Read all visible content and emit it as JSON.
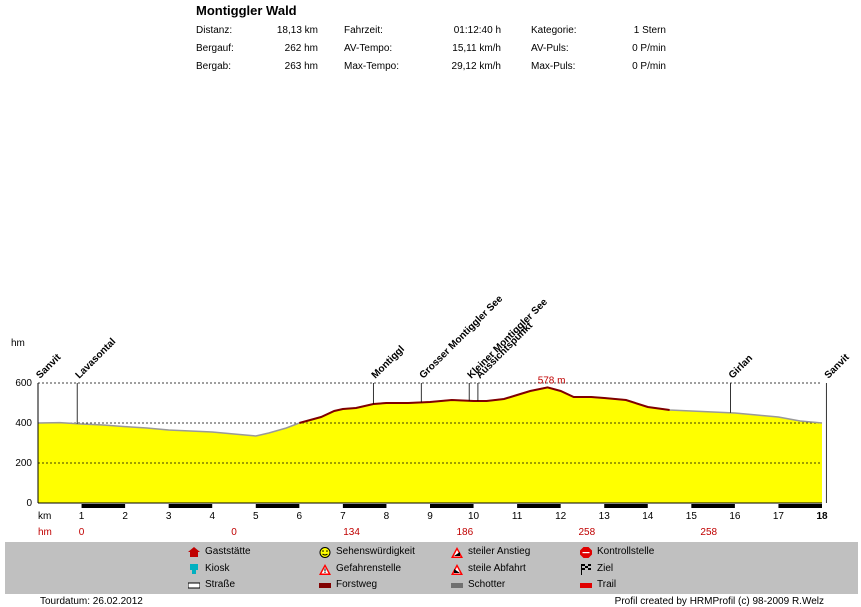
{
  "header": {
    "title": "Montiggler Wald",
    "stats": [
      {
        "label": "Distanz:",
        "value": "18,13 km"
      },
      {
        "label": "Bergauf:",
        "value": "262 hm"
      },
      {
        "label": "Bergab:",
        "value": "263 hm"
      },
      {
        "label": "Fahrzeit:",
        "value": "01:12:40 h"
      },
      {
        "label": "AV-Tempo:",
        "value": "15,11 km/h"
      },
      {
        "label": "Max-Tempo:",
        "value": "29,12 km/h"
      },
      {
        "label": "Kategorie:",
        "value": "1 Stern"
      },
      {
        "label": "AV-Puls:",
        "value": "0 P/min"
      },
      {
        "label": "Max-Puls:",
        "value": "0 P/min"
      }
    ]
  },
  "chart_data": {
    "type": "area",
    "ylabel": "hm",
    "xlabel": "km",
    "ylim": [
      0,
      600
    ],
    "xlim": [
      0,
      18
    ],
    "y_ticks": [
      "0",
      "200",
      "400",
      "600"
    ],
    "x_ticks": [
      "1",
      "2",
      "3",
      "4",
      "5",
      "6",
      "7",
      "8",
      "9",
      "10",
      "11",
      "12",
      "13",
      "14",
      "15",
      "16",
      "17",
      "18"
    ],
    "grid": "dashed-horizontal",
    "fill_color": "#ffff00",
    "line_color": "#800000",
    "x": [
      0,
      0.5,
      1,
      1.5,
      2,
      2.5,
      3,
      3.5,
      4,
      4.5,
      5,
      5.3,
      5.7,
      6,
      6.5,
      6.8,
      7,
      7.3,
      7.7,
      8,
      8.5,
      9,
      9.5,
      10,
      10.3,
      10.7,
      11,
      11.3,
      11.7,
      12,
      12.3,
      12.7,
      13,
      13.5,
      14,
      14.5,
      15,
      15.5,
      16,
      16.5,
      17,
      17.5,
      18
    ],
    "y": [
      400,
      402,
      395,
      390,
      382,
      375,
      365,
      360,
      355,
      345,
      335,
      350,
      375,
      400,
      430,
      460,
      470,
      475,
      495,
      500,
      500,
      505,
      515,
      510,
      510,
      520,
      540,
      560,
      578,
      560,
      530,
      530,
      525,
      515,
      480,
      465,
      460,
      455,
      450,
      440,
      430,
      410,
      400
    ],
    "peak_label": "578 m",
    "waypoints": [
      {
        "name": "Sanvit",
        "km": 0
      },
      {
        "name": "Lavasontal",
        "km": 0.9
      },
      {
        "name": "Montiggl",
        "km": 7.7
      },
      {
        "name": "Grosser Montiggler See",
        "km": 8.8
      },
      {
        "name": "Kleiner Montiggler See",
        "km": 9.9
      },
      {
        "name": "Aussichtspunkt",
        "km": 10.1
      },
      {
        "name": "Girlan",
        "km": 15.9
      },
      {
        "name": "Sanvit",
        "km": 18.1
      }
    ],
    "hm_row": [
      {
        "km": 1,
        "value": "0"
      },
      {
        "km": 4.5,
        "value": "0"
      },
      {
        "km": 7.2,
        "value": "134"
      },
      {
        "km": 9.8,
        "value": "186"
      },
      {
        "km": 12.6,
        "value": "258"
      },
      {
        "km": 15.4,
        "value": "258"
      }
    ],
    "hm_row_label": "hm",
    "surface_segments": [
      [
        1,
        2
      ],
      [
        3,
        4
      ],
      [
        5,
        6
      ],
      [
        7,
        8
      ],
      [
        9,
        10
      ],
      [
        11,
        12
      ],
      [
        13,
        14
      ],
      [
        15,
        16
      ],
      [
        17,
        18
      ]
    ]
  },
  "legend": [
    {
      "label": "Gaststätte",
      "icon": "house-icon"
    },
    {
      "label": "Kiosk",
      "icon": "kiosk-icon"
    },
    {
      "label": "Straße",
      "icon": "road-icon"
    },
    {
      "label": "Sehenswürdigkeit",
      "icon": "smiley-icon"
    },
    {
      "label": "Gefahrenstelle",
      "icon": "warning-icon"
    },
    {
      "label": "Forstweg",
      "icon": "forest-road-icon"
    },
    {
      "label": "steiler Anstieg",
      "icon": "steep-climb-icon"
    },
    {
      "label": "steile Abfahrt",
      "icon": "steep-descent-icon"
    },
    {
      "label": "Schotter",
      "icon": "gravel-icon"
    },
    {
      "label": "Kontrollstelle",
      "icon": "stop-icon"
    },
    {
      "label": "Ziel",
      "icon": "finish-flag-icon"
    },
    {
      "label": "Trail",
      "icon": "trail-icon"
    }
  ],
  "footer": {
    "date": "Tourdatum: 26.02.2012",
    "credit": "Profil created by HRMProfil (c) 98-2009 R.Welz"
  }
}
